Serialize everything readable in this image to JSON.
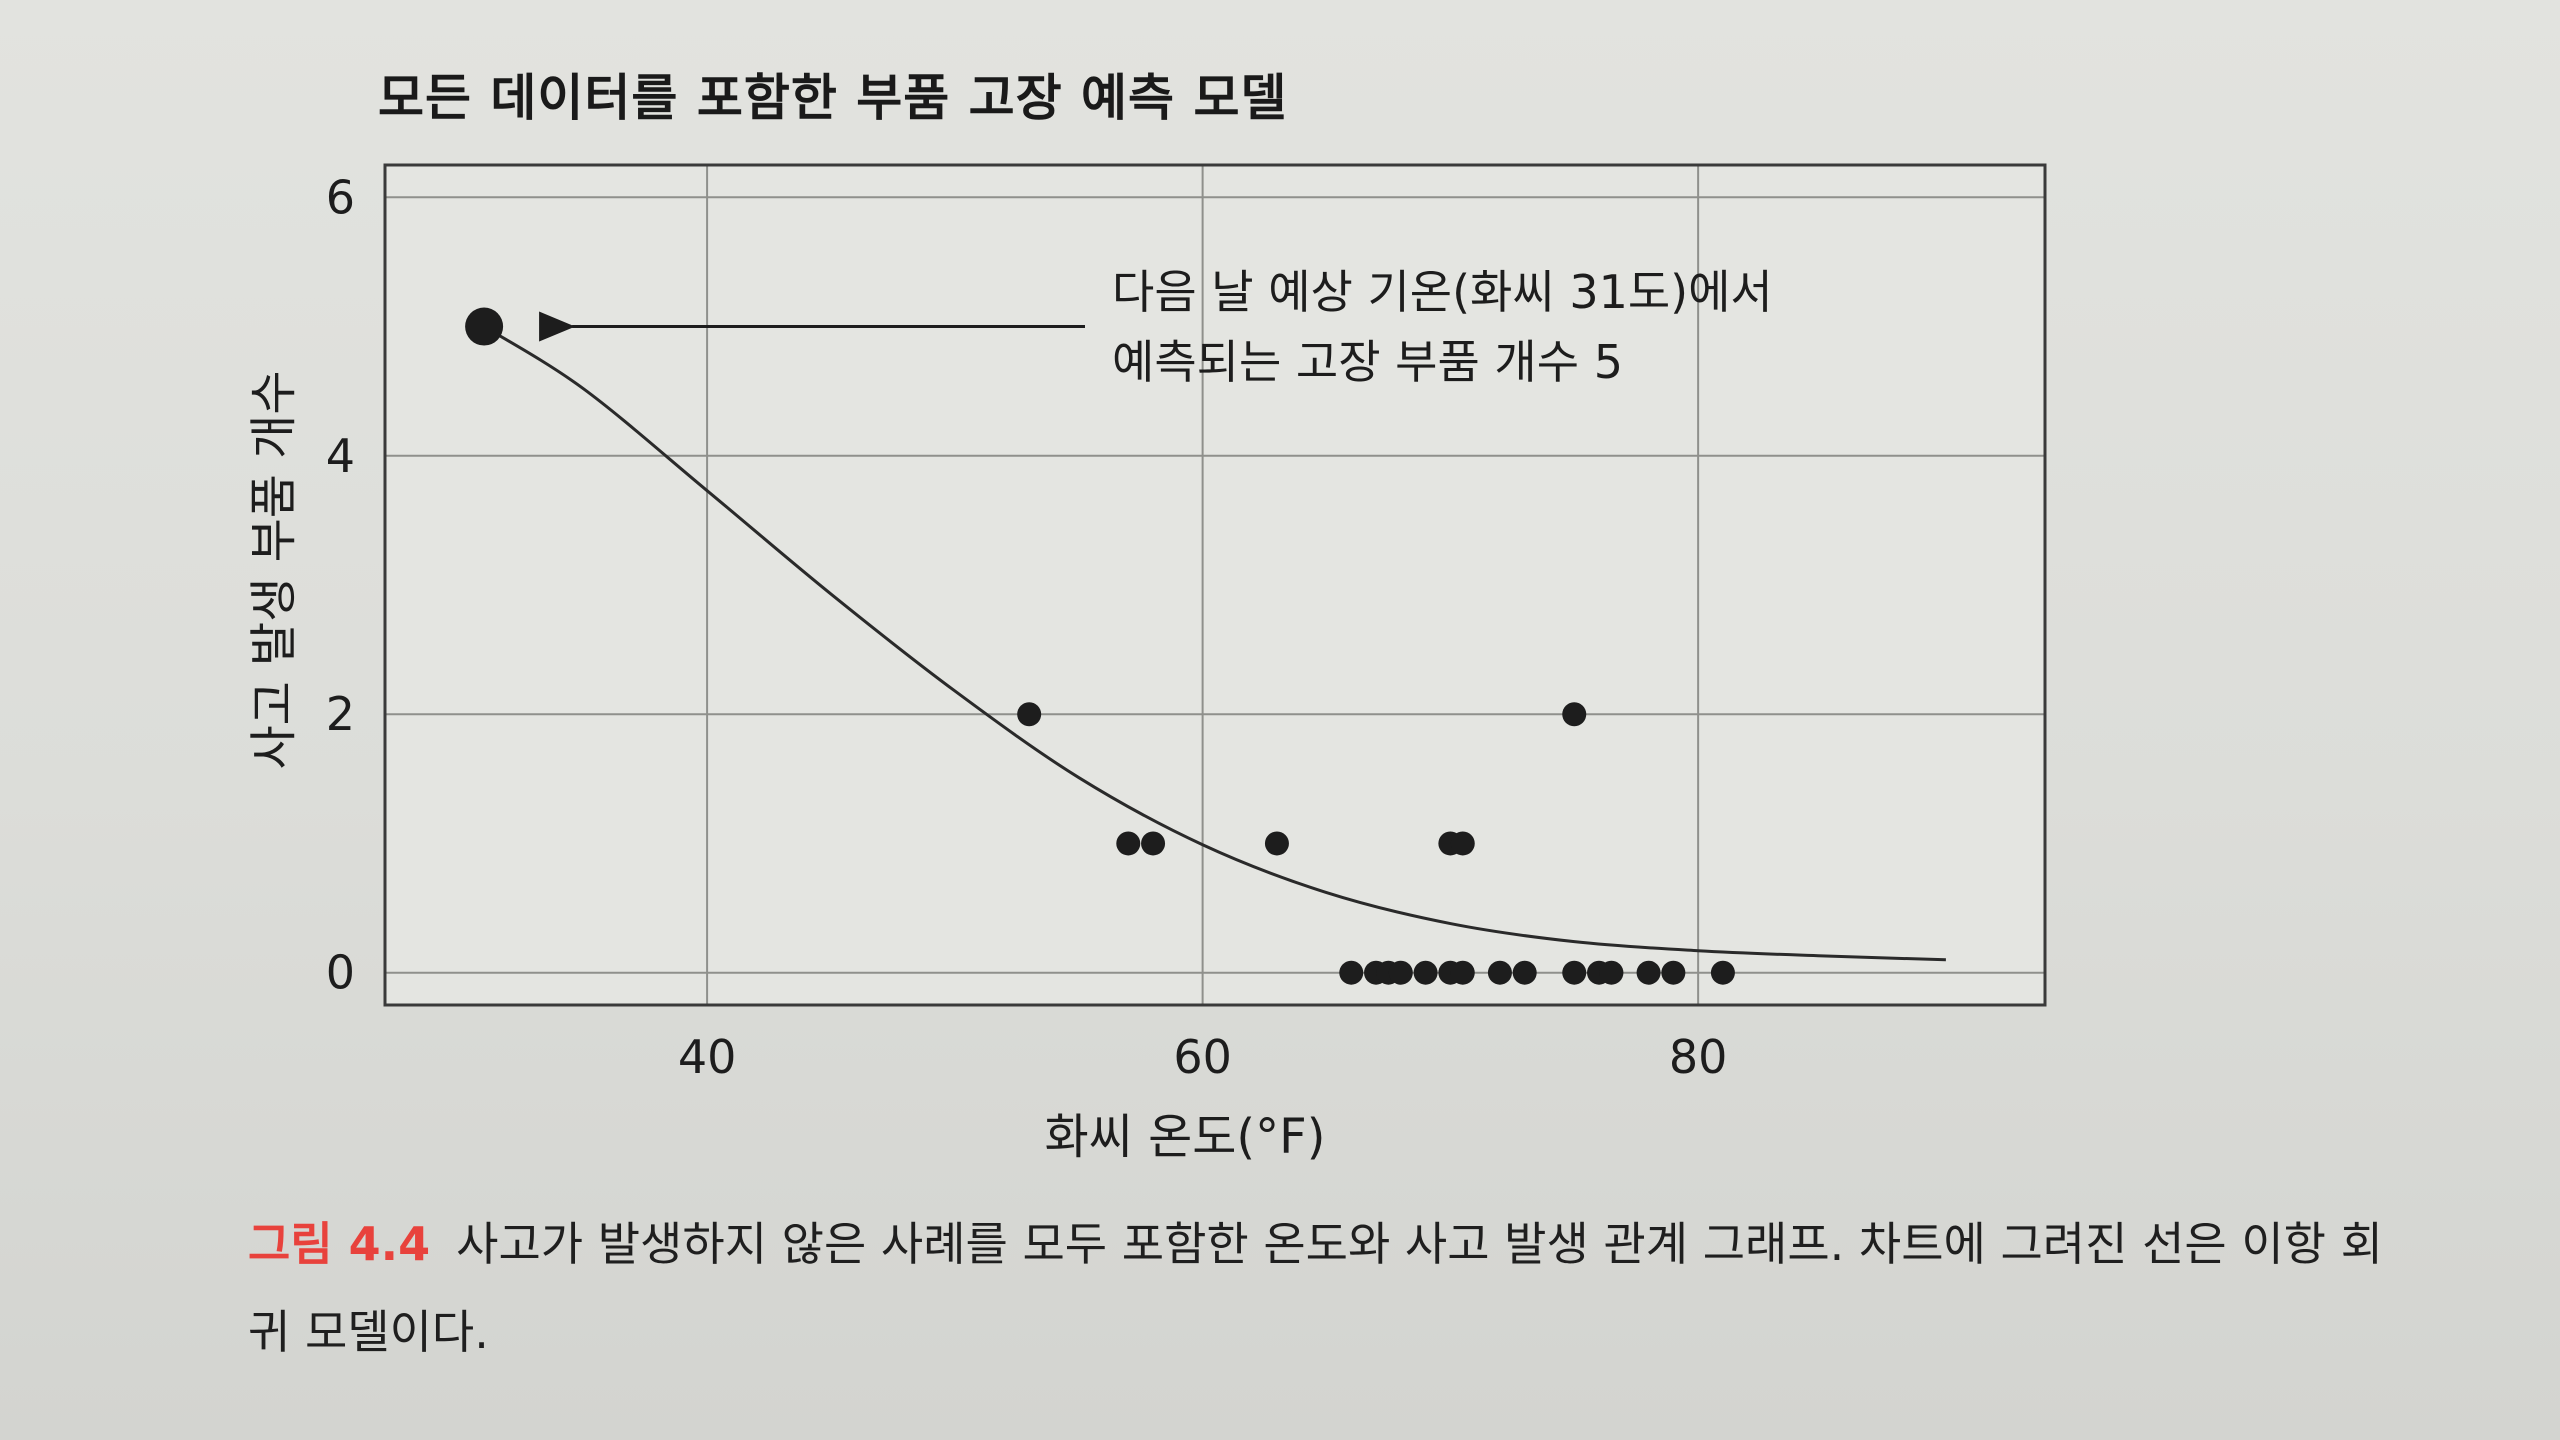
{
  "figure": {
    "label": "그림 4.4",
    "caption": "사고가 발생하지 않은 사례를 모두 포함한 온도와 사고 발생 관계 그래프. 차트에 그려진 선은 이항 회귀 모델이다."
  },
  "chart_data": {
    "type": "scatter",
    "title": "모든 데이터를 포함한 부품 고장 예측 모델",
    "xlabel": "화씨 온도(°F)",
    "ylabel": "사고 발생 부품 개수",
    "xlim": [
      27,
      94
    ],
    "ylim": [
      -0.25,
      6.25
    ],
    "xticks": [
      40,
      60,
      80
    ],
    "yticks": [
      0,
      2,
      4,
      6
    ],
    "grid": true,
    "points": [
      {
        "x": 53,
        "y": 2
      },
      {
        "x": 75,
        "y": 2
      },
      {
        "x": 57,
        "y": 1
      },
      {
        "x": 58,
        "y": 1
      },
      {
        "x": 63,
        "y": 1
      },
      {
        "x": 70,
        "y": 1
      },
      {
        "x": 70.5,
        "y": 1
      },
      {
        "x": 66,
        "y": 0
      },
      {
        "x": 67,
        "y": 0
      },
      {
        "x": 67.5,
        "y": 0
      },
      {
        "x": 68,
        "y": 0
      },
      {
        "x": 69,
        "y": 0
      },
      {
        "x": 70,
        "y": 0
      },
      {
        "x": 70.5,
        "y": 0
      },
      {
        "x": 72,
        "y": 0
      },
      {
        "x": 73,
        "y": 0
      },
      {
        "x": 75,
        "y": 0
      },
      {
        "x": 76,
        "y": 0
      },
      {
        "x": 76.5,
        "y": 0
      },
      {
        "x": 78,
        "y": 0
      },
      {
        "x": 79,
        "y": 0
      },
      {
        "x": 81,
        "y": 0
      }
    ],
    "prediction": {
      "x": 31,
      "y": 5
    },
    "fit_curve": {
      "name": "이항 회귀 모델",
      "x": [
        31,
        35,
        40,
        45,
        50,
        55,
        60,
        65,
        70,
        75,
        80,
        85,
        90
      ],
      "y": [
        5.0,
        4.52,
        3.73,
        2.93,
        2.18,
        1.51,
        0.99,
        0.62,
        0.38,
        0.24,
        0.17,
        0.13,
        0.1
      ]
    },
    "annotation": {
      "line1": "다음 날 예상 기온(화씨 31도)에서",
      "line2": "예측되는 고장 부품 개수 5"
    }
  },
  "colors": {
    "ink": "#1d1d1d",
    "grid": "#8f908c",
    "caption_label": "#e8423c"
  }
}
